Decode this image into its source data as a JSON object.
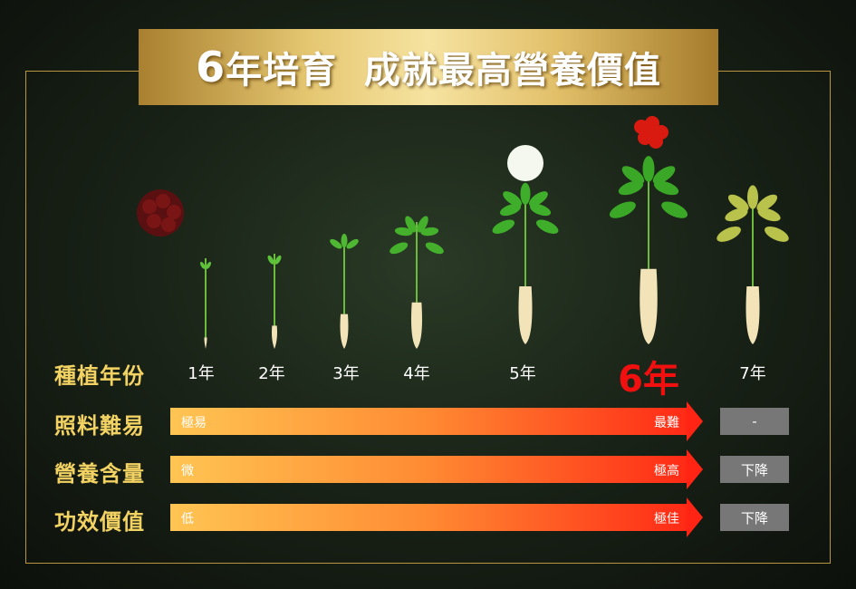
{
  "title": {
    "number": "6",
    "text": "年培育  成就最高營養價值"
  },
  "years": [
    "1年",
    "2年",
    "3年",
    "4年",
    "5年",
    "6年",
    "7年"
  ],
  "highlight_year_index": 5,
  "colors": {
    "label_gold": "#f2d262",
    "highlight_red": "#f01010",
    "bar_start": "#ffc553",
    "bar_end": "#ff2a16",
    "box_gray": "#777777"
  },
  "rows": [
    {
      "label": "種植年份"
    },
    {
      "label": "照料難易",
      "low": "極易",
      "high": "最難",
      "after": "-"
    },
    {
      "label": "營養含量",
      "low": "微",
      "high": "極高",
      "after": "下降"
    },
    {
      "label": "功效價值",
      "low": "低",
      "high": "極佳",
      "after": "下降"
    }
  ]
}
